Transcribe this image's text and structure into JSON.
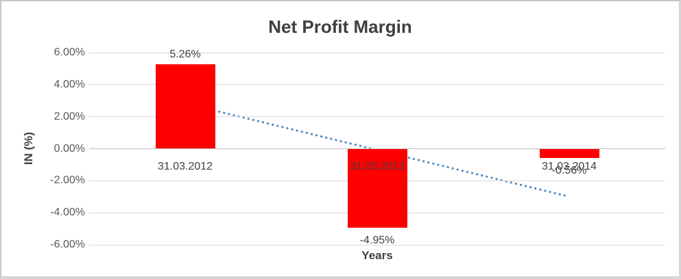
{
  "title": "Net Profit Margin",
  "y_axis": {
    "title": "IN (%)",
    "ticks": [
      "6.00%",
      "4.00%",
      "2.00%",
      "0.00%",
      "-2.00%",
      "-4.00%",
      "-6.00%"
    ],
    "tick_values": [
      6,
      4,
      2,
      0,
      -2,
      -4,
      -6
    ]
  },
  "x_axis": {
    "title": "Years"
  },
  "chart_data": {
    "type": "bar",
    "title": "Net Profit Margin",
    "categories": [
      "31.03.2012",
      "31.03.2013",
      "31.03.2014"
    ],
    "values": [
      5.26,
      -4.95,
      -0.56
    ],
    "data_labels": [
      "5.26%",
      "-4.95%",
      "-0.56%"
    ],
    "xlabel": "Years",
    "ylabel": "IN (%)",
    "ylim": [
      -6,
      6
    ],
    "y_tick_step": 2,
    "grid": true,
    "legend": false,
    "bar_color": "#ff0000",
    "trendline": {
      "type": "linear",
      "style": "dotted",
      "color": "#4a89c4",
      "start_value": 2.83,
      "end_value": -2.99
    }
  },
  "colors": {
    "bar": "#ff0000",
    "trendline": "#4a89c4",
    "gridline": "#d9d9d9",
    "axis_line": "#bfbfbf",
    "title_text": "#3f3f3f",
    "label_text": "#404040",
    "tick_text": "#595959",
    "frame_border": "#c6c6c6"
  }
}
